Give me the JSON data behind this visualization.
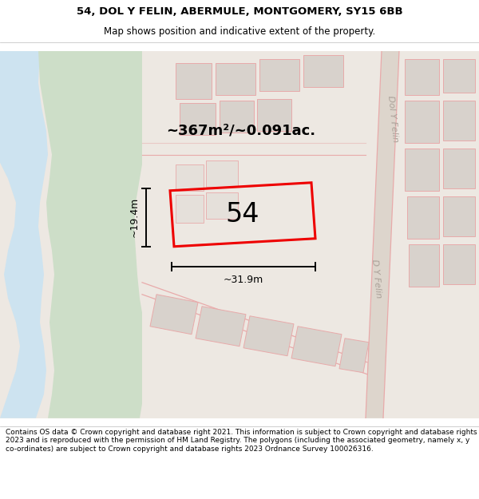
{
  "title_line1": "54, DOL Y FELIN, ABERMULE, MONTGOMERY, SY15 6BB",
  "title_line2": "Map shows position and indicative extent of the property.",
  "footer_text": "Contains OS data © Crown copyright and database right 2021. This information is subject to Crown copyright and database rights 2023 and is reproduced with the permission of HM Land Registry. The polygons (including the associated geometry, namely x, y co-ordinates) are subject to Crown copyright and database rights 2023 Ordnance Survey 100026316.",
  "area_label": "~367m²/~0.091ac.",
  "property_number": "54",
  "width_label": "~31.9m",
  "height_label": "~19.4m",
  "bg_color": "#ede8e2",
  "water_color": "#cde3f0",
  "green_color": "#cddec8",
  "building_color": "#d8d2cc",
  "road_line_color": "#e8aaaa",
  "property_outline_color": "#ee0000",
  "map_bg": "#ede8e2",
  "title_fs": 9.5,
  "subtitle_fs": 8.5,
  "footer_fs": 6.5
}
